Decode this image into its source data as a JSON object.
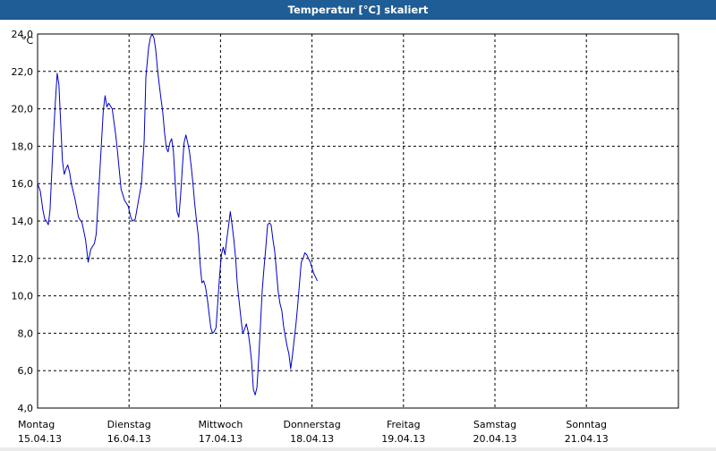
{
  "window": {
    "title": "Temperatur [°C] skaliert"
  },
  "colors": {
    "titlebar": "#1e5d95",
    "line": "#0000c8",
    "grid": "#000000",
    "background": "#ffffff"
  },
  "chart_data": {
    "type": "line",
    "title": "Temperatur [°C] skaliert",
    "ylabel": "°C",
    "ylim": [
      4.0,
      24.0
    ],
    "yticks": [
      4.0,
      6.0,
      8.0,
      10.0,
      12.0,
      14.0,
      16.0,
      18.0,
      20.0,
      22.0,
      24.0
    ],
    "ytick_labels": [
      "4,0",
      "6,0",
      "8,0",
      "10,0",
      "12,0",
      "14,0",
      "16,0",
      "18,0",
      "20,0",
      "22,0",
      "24,0"
    ],
    "x_unit": "days from Monday 15.04.13 00:00",
    "xlim": [
      0,
      7
    ],
    "x_ticks": [
      {
        "day": "Montag",
        "date": "15.04.13"
      },
      {
        "day": "Dienstag",
        "date": "16.04.13"
      },
      {
        "day": "Mittwoch",
        "date": "17.04.13"
      },
      {
        "day": "Donnerstag",
        "date": "18.04.13"
      },
      {
        "day": "Freitag",
        "date": "19.04.13"
      },
      {
        "day": "Samstag",
        "date": "20.04.13"
      },
      {
        "day": "Sonntag",
        "date": "21.04.13"
      }
    ],
    "grid": true,
    "series": [
      {
        "values": [
          [
            0.0,
            16.0
          ],
          [
            0.029,
            15.6
          ],
          [
            0.058,
            14.6
          ],
          [
            0.078,
            14.1
          ],
          [
            0.097,
            14.0
          ],
          [
            0.117,
            13.8
          ],
          [
            0.136,
            14.6
          ],
          [
            0.175,
            18.7
          ],
          [
            0.195,
            20.4
          ],
          [
            0.214,
            21.9
          ],
          [
            0.233,
            21.3
          ],
          [
            0.272,
            17.2
          ],
          [
            0.292,
            16.5
          ],
          [
            0.311,
            16.8
          ],
          [
            0.33,
            17.0
          ],
          [
            0.35,
            16.6
          ],
          [
            0.369,
            16.0
          ],
          [
            0.408,
            15.2
          ],
          [
            0.447,
            14.2
          ],
          [
            0.486,
            13.9
          ],
          [
            0.524,
            13.0
          ],
          [
            0.553,
            11.8
          ],
          [
            0.582,
            12.5
          ],
          [
            0.621,
            12.8
          ],
          [
            0.641,
            13.3
          ],
          [
            0.68,
            16.6
          ],
          [
            0.718,
            19.9
          ],
          [
            0.738,
            20.7
          ],
          [
            0.757,
            20.1
          ],
          [
            0.777,
            20.3
          ],
          [
            0.816,
            20.0
          ],
          [
            0.854,
            18.6
          ],
          [
            0.874,
            17.7
          ],
          [
            0.893,
            16.7
          ],
          [
            0.913,
            15.7
          ],
          [
            0.932,
            15.4
          ],
          [
            0.951,
            15.1
          ],
          [
            0.99,
            14.8
          ],
          [
            1.019,
            14.2
          ],
          [
            1.039,
            14.0
          ],
          [
            1.068,
            14.1
          ],
          [
            1.107,
            15.2
          ],
          [
            1.136,
            16.0
          ],
          [
            1.165,
            18.3
          ],
          [
            1.184,
            21.7
          ],
          [
            1.214,
            23.3
          ],
          [
            1.233,
            23.8
          ],
          [
            1.252,
            24.0
          ],
          [
            1.272,
            23.8
          ],
          [
            1.291,
            23.2
          ],
          [
            1.311,
            22.1
          ],
          [
            1.33,
            21.3
          ],
          [
            1.35,
            20.5
          ],
          [
            1.369,
            19.8
          ],
          [
            1.388,
            18.7
          ],
          [
            1.408,
            17.9
          ],
          [
            1.427,
            17.7
          ],
          [
            1.447,
            18.2
          ],
          [
            1.466,
            18.4
          ],
          [
            1.485,
            17.7
          ],
          [
            1.505,
            16.0
          ],
          [
            1.524,
            14.5
          ],
          [
            1.544,
            14.2
          ],
          [
            1.563,
            15.3
          ],
          [
            1.583,
            16.9
          ],
          [
            1.602,
            18.2
          ],
          [
            1.621,
            18.6
          ],
          [
            1.641,
            18.2
          ],
          [
            1.66,
            17.7
          ],
          [
            1.68,
            16.9
          ],
          [
            1.699,
            16.0
          ],
          [
            1.718,
            14.9
          ],
          [
            1.738,
            14.0
          ],
          [
            1.757,
            13.2
          ],
          [
            1.777,
            11.7
          ],
          [
            1.796,
            10.7
          ],
          [
            1.816,
            10.8
          ],
          [
            1.835,
            10.5
          ],
          [
            1.854,
            9.9
          ],
          [
            1.874,
            9.1
          ],
          [
            1.893,
            8.3
          ],
          [
            1.913,
            8.0
          ],
          [
            1.932,
            8.1
          ],
          [
            1.951,
            8.3
          ],
          [
            1.971,
            9.7
          ],
          [
            1.99,
            11.1
          ],
          [
            2.01,
            12.2
          ],
          [
            2.029,
            12.6
          ],
          [
            2.049,
            12.2
          ],
          [
            2.068,
            13.0
          ],
          [
            2.087,
            13.7
          ],
          [
            2.107,
            14.5
          ],
          [
            2.126,
            13.8
          ],
          [
            2.146,
            13.0
          ],
          [
            2.165,
            12.0
          ],
          [
            2.184,
            10.6
          ],
          [
            2.204,
            9.7
          ],
          [
            2.223,
            8.8
          ],
          [
            2.243,
            8.0
          ],
          [
            2.262,
            8.2
          ],
          [
            2.282,
            8.5
          ],
          [
            2.301,
            8.1
          ],
          [
            2.32,
            7.4
          ],
          [
            2.34,
            6.5
          ],
          [
            2.359,
            5.0
          ],
          [
            2.379,
            4.7
          ],
          [
            2.398,
            5.1
          ],
          [
            2.417,
            6.6
          ],
          [
            2.437,
            8.5
          ],
          [
            2.456,
            10.3
          ],
          [
            2.476,
            11.5
          ],
          [
            2.495,
            12.6
          ],
          [
            2.515,
            13.8
          ],
          [
            2.534,
            13.9
          ],
          [
            2.553,
            13.8
          ],
          [
            2.573,
            13.0
          ],
          [
            2.592,
            12.4
          ],
          [
            2.612,
            11.3
          ],
          [
            2.631,
            10.2
          ],
          [
            2.65,
            9.6
          ],
          [
            2.67,
            9.2
          ],
          [
            2.689,
            8.4
          ],
          [
            2.709,
            7.8
          ],
          [
            2.728,
            7.3
          ],
          [
            2.748,
            6.9
          ],
          [
            2.767,
            6.1
          ],
          [
            2.786,
            6.8
          ],
          [
            2.806,
            7.7
          ],
          [
            2.825,
            8.5
          ],
          [
            2.845,
            9.6
          ],
          [
            2.864,
            10.7
          ],
          [
            2.883,
            11.8
          ],
          [
            2.903,
            12.0
          ],
          [
            2.922,
            12.3
          ],
          [
            2.942,
            12.2
          ],
          [
            2.961,
            12.0
          ],
          [
            2.981,
            11.8
          ],
          [
            3.0,
            11.5
          ],
          [
            3.019,
            11.2
          ],
          [
            3.039,
            11.0
          ],
          [
            3.058,
            10.8
          ]
        ]
      }
    ]
  }
}
